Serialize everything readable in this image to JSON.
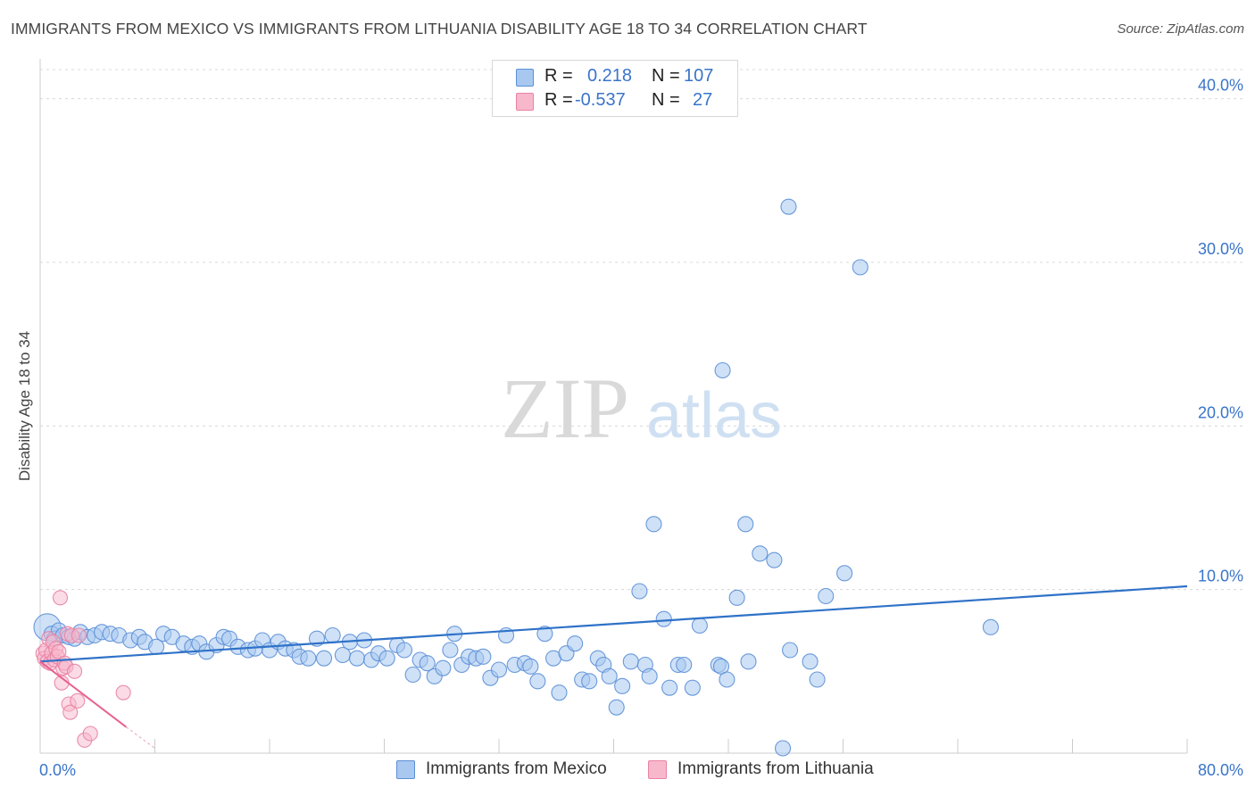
{
  "header": {
    "title": "IMMIGRANTS FROM MEXICO VS IMMIGRANTS FROM LITHUANIA DISABILITY AGE 18 TO 34 CORRELATION CHART",
    "source": "Source: ZipAtlas.com"
  },
  "watermark": {
    "zip": "ZIP",
    "atlas": "atlas"
  },
  "legend": {
    "series1": {
      "r_label": "R =",
      "r_value": "0.218",
      "n_label": "N =",
      "n_value": "107"
    },
    "series2": {
      "r_label": "R =",
      "r_value": "-0.537",
      "n_label": "N =",
      "n_value": "27"
    }
  },
  "bottom_legend": {
    "series1": "Immigrants from Mexico",
    "series2": "Immigrants from Lithuania"
  },
  "colors": {
    "series1_fill": "#a8c8f0",
    "series1_stroke": "#5b8fd6",
    "series1_line": "#2f72c8",
    "series2_fill": "#f7b8cc",
    "series2_stroke": "#e882a4",
    "series2_line": "#e8608e",
    "axis_label": "#3a74c9",
    "grid": "#d8d8d8"
  },
  "chart_data": {
    "type": "scatter",
    "title": "IMMIGRANTS FROM MEXICO VS IMMIGRANTS FROM LITHUANIA DISABILITY AGE 18 TO 34 CORRELATION CHART",
    "xlabel": "",
    "ylabel": "Disability Age 18 to 34",
    "xlim": [
      0,
      80
    ],
    "ylim": [
      0,
      42
    ],
    "x_tick_labels": [
      "0.0%",
      "80.0%"
    ],
    "y_ticks": [
      10,
      20,
      30,
      40
    ],
    "y_tick_labels": [
      "10.0%",
      "20.0%",
      "30.0%",
      "40.0%"
    ],
    "grid": true,
    "series": [
      {
        "name": "Immigrants from Mexico",
        "r": 0.218,
        "n": 107,
        "trend": {
          "x": [
            0,
            80
          ],
          "y": [
            5.6,
            10.2
          ]
        },
        "points": [
          [
            0.5,
            7.7
          ],
          [
            0.8,
            7.3
          ],
          [
            1.0,
            7.0
          ],
          [
            1.3,
            7.5
          ],
          [
            1.6,
            7.2
          ],
          [
            2.0,
            7.1
          ],
          [
            2.4,
            7.0
          ],
          [
            2.8,
            7.4
          ],
          [
            3.3,
            7.1
          ],
          [
            3.8,
            7.2
          ],
          [
            4.3,
            7.4
          ],
          [
            4.9,
            7.3
          ],
          [
            5.5,
            7.2
          ],
          [
            6.3,
            6.9
          ],
          [
            6.9,
            7.1
          ],
          [
            7.3,
            6.8
          ],
          [
            8.1,
            6.5
          ],
          [
            8.6,
            7.3
          ],
          [
            9.2,
            7.1
          ],
          [
            10.0,
            6.7
          ],
          [
            10.6,
            6.5
          ],
          [
            11.1,
            6.7
          ],
          [
            11.6,
            6.2
          ],
          [
            12.3,
            6.6
          ],
          [
            12.8,
            7.1
          ],
          [
            13.2,
            7.0
          ],
          [
            13.8,
            6.5
          ],
          [
            14.5,
            6.3
          ],
          [
            15.0,
            6.4
          ],
          [
            15.5,
            6.9
          ],
          [
            16.0,
            6.3
          ],
          [
            16.6,
            6.8
          ],
          [
            17.1,
            6.4
          ],
          [
            17.7,
            6.3
          ],
          [
            18.1,
            5.9
          ],
          [
            18.7,
            5.8
          ],
          [
            19.3,
            7.0
          ],
          [
            19.8,
            5.8
          ],
          [
            20.4,
            7.2
          ],
          [
            21.1,
            6.0
          ],
          [
            21.6,
            6.8
          ],
          [
            22.1,
            5.8
          ],
          [
            22.6,
            6.9
          ],
          [
            23.1,
            5.7
          ],
          [
            23.6,
            6.1
          ],
          [
            24.2,
            5.8
          ],
          [
            24.9,
            6.6
          ],
          [
            25.4,
            6.3
          ],
          [
            26.0,
            4.8
          ],
          [
            26.5,
            5.7
          ],
          [
            27.0,
            5.5
          ],
          [
            27.5,
            4.7
          ],
          [
            28.1,
            5.2
          ],
          [
            28.6,
            6.3
          ],
          [
            28.9,
            7.3
          ],
          [
            29.4,
            5.4
          ],
          [
            29.9,
            5.9
          ],
          [
            30.4,
            5.8
          ],
          [
            30.9,
            5.9
          ],
          [
            31.4,
            4.6
          ],
          [
            32.0,
            5.1
          ],
          [
            32.5,
            7.2
          ],
          [
            33.1,
            5.4
          ],
          [
            33.8,
            5.5
          ],
          [
            34.2,
            5.3
          ],
          [
            34.7,
            4.4
          ],
          [
            35.2,
            7.3
          ],
          [
            35.8,
            5.8
          ],
          [
            36.2,
            3.7
          ],
          [
            36.7,
            6.1
          ],
          [
            37.3,
            6.7
          ],
          [
            37.8,
            4.5
          ],
          [
            38.3,
            4.4
          ],
          [
            38.9,
            5.8
          ],
          [
            39.3,
            5.4
          ],
          [
            39.7,
            4.7
          ],
          [
            40.2,
            2.8
          ],
          [
            40.6,
            4.1
          ],
          [
            41.2,
            5.6
          ],
          [
            41.8,
            9.9
          ],
          [
            42.2,
            5.4
          ],
          [
            42.5,
            4.7
          ],
          [
            42.8,
            14.0
          ],
          [
            43.5,
            8.2
          ],
          [
            43.9,
            4.0
          ],
          [
            44.5,
            5.4
          ],
          [
            44.9,
            5.4
          ],
          [
            45.5,
            4.0
          ],
          [
            46.0,
            7.8
          ],
          [
            47.3,
            5.4
          ],
          [
            47.5,
            5.3
          ],
          [
            47.6,
            23.4
          ],
          [
            47.9,
            4.5
          ],
          [
            48.6,
            9.5
          ],
          [
            49.2,
            14.0
          ],
          [
            49.4,
            5.6
          ],
          [
            50.2,
            12.2
          ],
          [
            51.2,
            11.8
          ],
          [
            51.8,
            0.3
          ],
          [
            52.3,
            6.3
          ],
          [
            52.2,
            33.4
          ],
          [
            53.7,
            5.6
          ],
          [
            54.2,
            4.5
          ],
          [
            54.8,
            9.6
          ],
          [
            56.1,
            11.0
          ],
          [
            57.2,
            29.7
          ],
          [
            66.3,
            7.7
          ]
        ]
      },
      {
        "name": "Immigrants from Lithuania",
        "r": -0.537,
        "n": 27,
        "trend": {
          "x": [
            0,
            6.0
          ],
          "y": [
            5.6,
            1.6
          ]
        },
        "trend_extension": {
          "x": [
            6.0,
            8.0
          ],
          "y": [
            1.6,
            0.3
          ]
        },
        "points": [
          [
            0.2,
            6.1
          ],
          [
            0.3,
            5.8
          ],
          [
            0.4,
            6.3
          ],
          [
            0.5,
            5.6
          ],
          [
            0.6,
            7.0
          ],
          [
            0.7,
            5.5
          ],
          [
            0.8,
            6.1
          ],
          [
            0.9,
            6.8
          ],
          [
            1.0,
            5.7
          ],
          [
            1.1,
            6.4
          ],
          [
            1.2,
            5.9
          ],
          [
            1.3,
            6.2
          ],
          [
            1.4,
            9.5
          ],
          [
            1.5,
            4.3
          ],
          [
            1.6,
            5.2
          ],
          [
            1.7,
            5.5
          ],
          [
            1.8,
            5.3
          ],
          [
            1.9,
            7.3
          ],
          [
            2.0,
            3.0
          ],
          [
            2.1,
            2.5
          ],
          [
            2.2,
            7.2
          ],
          [
            2.4,
            5.0
          ],
          [
            2.6,
            3.2
          ],
          [
            2.7,
            7.2
          ],
          [
            3.1,
            0.8
          ],
          [
            3.5,
            1.2
          ],
          [
            5.8,
            3.7
          ]
        ]
      }
    ]
  }
}
